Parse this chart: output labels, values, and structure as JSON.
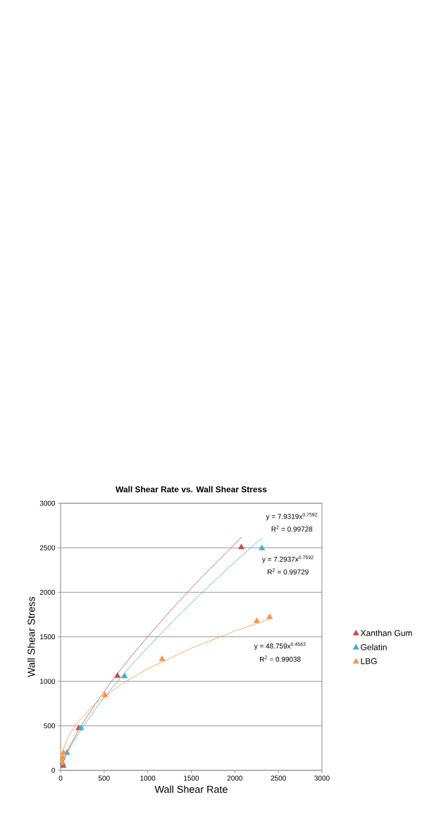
{
  "chart_data": {
    "type": "scatter",
    "title": "Wall  Shear Rate vs. Wall Shear Stress",
    "xlabel": "Wall Shear Rate",
    "ylabel": "Wall Shear Stress",
    "xlim": [
      0,
      3000
    ],
    "ylim": [
      0,
      3000
    ],
    "xticks": [
      0,
      500,
      1000,
      1500,
      2000,
      2500,
      3000
    ],
    "yticks": [
      0,
      500,
      1000,
      1500,
      2000,
      2500,
      3000
    ],
    "grid": "y",
    "legend": "right",
    "marker": "triangle",
    "series": [
      {
        "name": "Xanthan Gum",
        "color": "#c0504d",
        "x": [
          30,
          208,
          653,
          2075
        ],
        "values": [
          50,
          472,
          1060,
          2505
        ]
      },
      {
        "name": "Gelatin",
        "color": "#4bacc6",
        "x": [
          27,
          73,
          235,
          734,
          2311
        ],
        "values": [
          75,
          195,
          472,
          1056,
          2494
        ]
      },
      {
        "name": "LBG",
        "color": "#f79646",
        "x": [
          20,
          25,
          32,
          510,
          1165,
          2252,
          2400
        ],
        "values": [
          90,
          142,
          195,
          845,
          1248,
          1677,
          1722
        ]
      },
      {
        "type": "line",
        "marker": "none",
        "color": "#c0504d",
        "x": [
          10,
          50,
          100,
          200,
          400,
          600,
          800,
          1000,
          1300,
          1600,
          2080
        ],
        "values": [
          46,
          155,
          262,
          443,
          750,
          1020,
          1269,
          1502,
          1835,
          2149,
          2620
        ]
      },
      {
        "type": "line",
        "marker": "none",
        "color": "#4bacc6",
        "x": [
          10,
          50,
          100,
          200,
          400,
          600,
          800,
          1000,
          1300,
          1600,
          2000,
          2310
        ],
        "values": [
          42,
          142,
          241,
          407,
          689,
          938,
          1167,
          1381,
          1687,
          1976,
          2341,
          2610
        ]
      },
      {
        "type": "line",
        "marker": "none",
        "color": "#f79646",
        "x": [
          5,
          20,
          50,
          100,
          200,
          400,
          700,
          1000,
          1500,
          2000,
          2400
        ],
        "values": [
          102,
          191,
          291,
          399,
          547,
          750,
          969,
          1140,
          1372,
          1564,
          1700
        ]
      }
    ],
    "annotations": [
      "y = 7.9319x$^{0.7592}$",
      "R$^{2}$ = 0.99728",
      "y = 7.2937x$^{0.7592}$",
      "R$^{2}$ = 0.99729",
      "y = 48.759x$^{0.4563}$",
      "R$^{2}$ = 0.99038"
    ]
  }
}
